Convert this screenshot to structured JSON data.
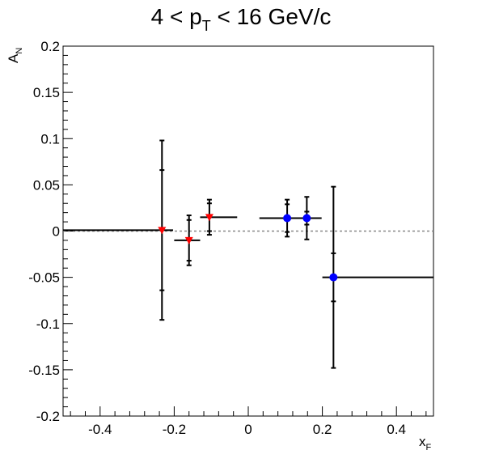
{
  "chart_data": {
    "type": "scatter",
    "title": "4 < p",
    "title_sub": "T",
    "title_rest": " < 16 GeV/c",
    "xlabel": "x",
    "xlabel_sub": "F",
    "ylabel": "A",
    "ylabel_sub": "N",
    "xlim": [
      -0.5,
      0.5
    ],
    "ylim": [
      -0.2,
      0.2
    ],
    "x_ticks": [
      -0.4,
      -0.2,
      0,
      0.2,
      0.4
    ],
    "x_tick_labels": [
      "-0.4",
      "-0.2",
      "0",
      "0.2",
      "0.4"
    ],
    "y_ticks": [
      -0.2,
      -0.15,
      -0.1,
      -0.05,
      0,
      0.05,
      0.1,
      0.15,
      0.2
    ],
    "y_tick_labels": [
      "-0.2",
      "-0.15",
      "-0.1",
      "-0.05",
      "0",
      "0.05",
      "0.1",
      "0.15",
      "0.2"
    ],
    "grid": false,
    "reference_line": {
      "y": 0,
      "style": "dotted",
      "color": "#888888"
    },
    "series": [
      {
        "marker": "triangle-down",
        "color": "#ff0000",
        "points": [
          {
            "x": -0.233,
            "y": 0.001,
            "xerr_low": 0.267,
            "xerr_high": 0.03,
            "yerr_stat": 0.065,
            "yerr_total": 0.097
          },
          {
            "x": -0.16,
            "y": -0.01,
            "xerr_low": 0.04,
            "xerr_high": 0.03,
            "yerr_stat": 0.022,
            "yerr_total": 0.027
          },
          {
            "x": -0.105,
            "y": 0.015,
            "xerr_low": 0.025,
            "xerr_high": 0.075,
            "yerr_stat": 0.015,
            "yerr_total": 0.019
          }
        ]
      },
      {
        "marker": "circle",
        "color": "#0000ff",
        "points": [
          {
            "x": 0.105,
            "y": 0.014,
            "xerr_low": 0.075,
            "xerr_high": 0.05,
            "yerr_stat": 0.015,
            "yerr_total": 0.02
          },
          {
            "x": 0.158,
            "y": 0.014,
            "xerr_low": 0.03,
            "xerr_high": 0.04,
            "yerr_stat": 0.007,
            "yerr_total": 0.023
          },
          {
            "x": 0.23,
            "y": -0.05,
            "xerr_low": 0.03,
            "xerr_high": 0.27,
            "yerr_stat": 0.026,
            "yerr_total": 0.098
          }
        ]
      }
    ]
  }
}
